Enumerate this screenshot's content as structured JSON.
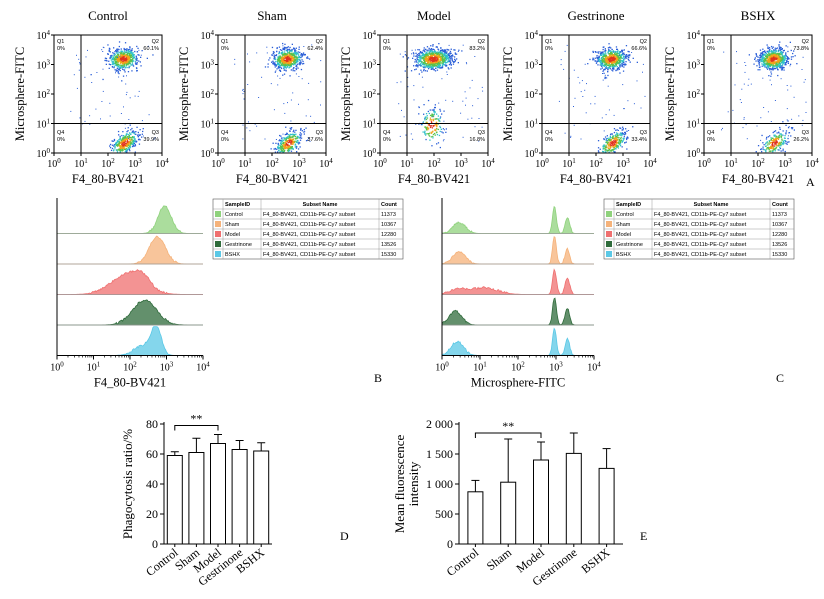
{
  "panels": {
    "A": "A",
    "B": "B",
    "C": "C",
    "D": "D",
    "E": "E"
  },
  "chart_data": [
    {
      "type": "scatter",
      "panel": "A",
      "description_kind": "flow-cytometry-density-plots",
      "xlabel": "F4_80-BV421",
      "ylabel": "Microsphere-FITC",
      "xticks": [
        "10^0",
        "10^1",
        "10^2",
        "10^3",
        "10^4"
      ],
      "yticks": [
        "10^0",
        "10^1",
        "10^2",
        "10^3",
        "10^4"
      ],
      "xlim": [
        1,
        10000
      ],
      "ylim": [
        1,
        10000
      ],
      "gate": {
        "x": 10,
        "y": 10
      },
      "plots": [
        {
          "title": "Control",
          "q1": "Q1",
          "q1_pct": "0%",
          "q2": "Q2",
          "q2_pct": "60.1%",
          "q3": "Q3",
          "q3_pct": "39.9%",
          "q4": "Q4",
          "q4_pct": "0%"
        },
        {
          "title": "Sham",
          "q1": "Q1",
          "q1_pct": "0%",
          "q2": "Q2",
          "q2_pct": "62.4%",
          "q3": "Q3",
          "q3_pct": "37.6%",
          "q4": "Q4",
          "q4_pct": "0%"
        },
        {
          "title": "Model",
          "q1": "Q1",
          "q1_pct": "0%",
          "q2": "Q2",
          "q2_pct": "83.2%",
          "q3": "Q3",
          "q3_pct": "16.8%",
          "q4": "Q4",
          "q4_pct": "0%"
        },
        {
          "title": "Gestrinone",
          "q1": "Q1",
          "q1_pct": "0%",
          "q2": "Q2",
          "q2_pct": "66.6%",
          "q3": "Q3",
          "q3_pct": "33.4%",
          "q4": "Q4",
          "q4_pct": "0%"
        },
        {
          "title": "BSHX",
          "q1": "Q1",
          "q1_pct": "0%",
          "q2": "Q2",
          "q2_pct": "73.8%",
          "q3": "Q3",
          "q3_pct": "26.2%",
          "q4": "Q4",
          "q4_pct": "0%"
        }
      ]
    },
    {
      "type": "area",
      "panel": "B",
      "description_kind": "histogram-overlay",
      "xlabel": "F4_80-BV421",
      "xticks": [
        "10^0",
        "10^1",
        "10^2",
        "10^3",
        "10^4"
      ],
      "xlim": [
        1,
        10000
      ],
      "legend": {
        "headers": [
          "SampleID",
          "Subset Name",
          "Count"
        ],
        "rows": [
          {
            "sample": "Control",
            "subset": "F4_80-BV421, CD11b-PE-Cy7 subset",
            "count": "11373",
            "color": "#8fd27c"
          },
          {
            "sample": "Sham",
            "subset": "F4_80-BV421, CD11b-PE-Cy7 subset",
            "count": "10367",
            "color": "#f5b27a"
          },
          {
            "sample": "Model",
            "subset": "F4_80-BV421, CD11b-PE-Cy7 subset",
            "count": "12280",
            "color": "#ef6f6f"
          },
          {
            "sample": "Gestrinone",
            "subset": "F4_80-BV421, CD11b-PE-Cy7 subset",
            "count": "13526",
            "color": "#2f6b3b"
          },
          {
            "sample": "BSHX",
            "subset": "F4_80-BV421, CD11b-PE-Cy7 subset",
            "count": "15330",
            "color": "#5bc8e6"
          }
        ]
      },
      "series": [
        {
          "name": "Control",
          "peaks": [
            {
              "center_log10": 2.95,
              "width": 0.18,
              "height": 1.0
            }
          ]
        },
        {
          "name": "Sham",
          "peaks": [
            {
              "center_log10": 2.75,
              "width": 0.22,
              "height": 1.0
            }
          ]
        },
        {
          "name": "Model",
          "peaks": [
            {
              "center_log10": 1.95,
              "width": 0.45,
              "height": 0.75
            },
            {
              "center_log10": 2.35,
              "width": 0.2,
              "height": 0.3
            }
          ]
        },
        {
          "name": "Gestrinone",
          "peaks": [
            {
              "center_log10": 2.4,
              "width": 0.33,
              "height": 0.9
            }
          ]
        },
        {
          "name": "BSHX",
          "peaks": [
            {
              "center_log10": 2.72,
              "width": 0.14,
              "height": 1.0
            },
            {
              "center_log10": 2.35,
              "width": 0.25,
              "height": 0.35
            }
          ]
        }
      ]
    },
    {
      "type": "area",
      "panel": "C",
      "description_kind": "histogram-overlay",
      "xlabel": "Microsphere-FITC",
      "xticks": [
        "10^0",
        "10^1",
        "10^2",
        "10^3",
        "10^4"
      ],
      "xlim": [
        1,
        10000
      ],
      "legend": {
        "headers": [
          "SampleID",
          "Subset Name",
          "Count"
        ],
        "rows": [
          {
            "sample": "Control",
            "subset": "F4_80-BV421, CD11b-PE-Cy7 subset",
            "count": "11373",
            "color": "#8fd27c"
          },
          {
            "sample": "Sham",
            "subset": "F4_80-BV421, CD11b-PE-Cy7 subset",
            "count": "10367",
            "color": "#f5b27a"
          },
          {
            "sample": "Model",
            "subset": "F4_80-BV421, CD11b-PE-Cy7 subset",
            "count": "12280",
            "color": "#ef6f6f"
          },
          {
            "sample": "Gestrinone",
            "subset": "F4_80-BV421, CD11b-PE-Cy7 subset",
            "count": "13526",
            "color": "#2f6b3b"
          },
          {
            "sample": "BSHX",
            "subset": "F4_80-BV421, CD11b-PE-Cy7 subset",
            "count": "15330",
            "color": "#5bc8e6"
          }
        ]
      },
      "series": [
        {
          "name": "Control",
          "peaks": [
            {
              "center_log10": 0.45,
              "width": 0.17,
              "height": 0.4
            },
            {
              "center_log10": 2.96,
              "width": 0.05,
              "height": 1.0
            },
            {
              "center_log10": 3.3,
              "width": 0.06,
              "height": 0.6
            }
          ]
        },
        {
          "name": "Sham",
          "peaks": [
            {
              "center_log10": 0.45,
              "width": 0.17,
              "height": 0.45
            },
            {
              "center_log10": 2.96,
              "width": 0.05,
              "height": 1.0
            },
            {
              "center_log10": 3.3,
              "width": 0.06,
              "height": 0.55
            }
          ]
        },
        {
          "name": "Model",
          "peaks": [
            {
              "center_log10": 0.4,
              "width": 0.2,
              "height": 0.2
            },
            {
              "center_log10": 1.1,
              "width": 0.35,
              "height": 0.25
            },
            {
              "center_log10": 2.96,
              "width": 0.05,
              "height": 0.9
            },
            {
              "center_log10": 3.3,
              "width": 0.06,
              "height": 0.6
            }
          ]
        },
        {
          "name": "Gestrinone",
          "peaks": [
            {
              "center_log10": 0.35,
              "width": 0.17,
              "height": 0.5
            },
            {
              "center_log10": 2.96,
              "width": 0.05,
              "height": 1.0
            },
            {
              "center_log10": 3.3,
              "width": 0.06,
              "height": 0.6
            }
          ]
        },
        {
          "name": "BSHX",
          "peaks": [
            {
              "center_log10": 0.4,
              "width": 0.17,
              "height": 0.5
            },
            {
              "center_log10": 2.96,
              "width": 0.05,
              "height": 1.0
            },
            {
              "center_log10": 3.3,
              "width": 0.06,
              "height": 0.6
            }
          ]
        }
      ]
    },
    {
      "type": "bar",
      "panel": "D",
      "title": "",
      "categories": [
        "Control",
        "Sham",
        "Model",
        "Gestrinone",
        "BSHX"
      ],
      "values": [
        59,
        61,
        67,
        63,
        62
      ],
      "errors": [
        2.5,
        9.5,
        6,
        6,
        5.5
      ],
      "ylabel": "Phagocytosis ratio/%",
      "ylim": [
        0,
        80
      ],
      "yticks": [
        0,
        20,
        40,
        60,
        80
      ],
      "ytick_labels": [
        "0",
        "20",
        "40",
        "60",
        "80"
      ],
      "significance": {
        "from": 0,
        "to": 2,
        "label": "**"
      }
    },
    {
      "type": "bar",
      "panel": "E",
      "title": "",
      "categories": [
        "Control",
        "Sham",
        "Model",
        "Gestrinone",
        "BSHX"
      ],
      "values": [
        870,
        1030,
        1400,
        1510,
        1260
      ],
      "errors": [
        190,
        720,
        300,
        340,
        330
      ],
      "ylabel": "Mean fluorescence intensity",
      "ylabel_lines": [
        "Mean fluorescence",
        "intensity"
      ],
      "ylim": [
        0,
        2000
      ],
      "yticks": [
        0,
        500,
        1000,
        1500,
        2000
      ],
      "ytick_labels": [
        "0",
        "500",
        "1 000",
        "1 500",
        "2 000"
      ],
      "significance": {
        "from": 0,
        "to": 2,
        "label": "**"
      }
    }
  ]
}
